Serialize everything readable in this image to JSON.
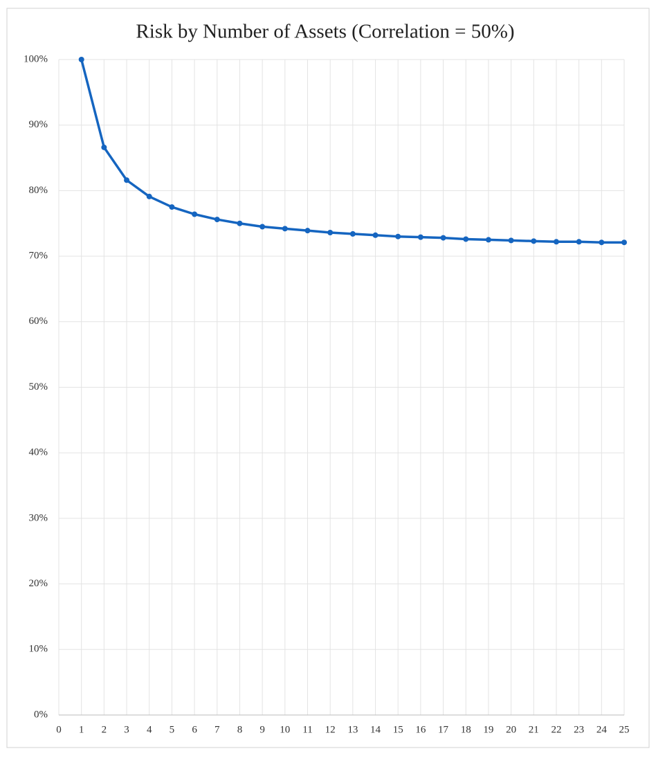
{
  "chart_data": {
    "type": "line",
    "title": "Risk by Number of Assets (Correlation = 50%)",
    "x": [
      1,
      2,
      3,
      4,
      5,
      6,
      7,
      8,
      9,
      10,
      11,
      12,
      13,
      14,
      15,
      16,
      17,
      18,
      19,
      20,
      21,
      22,
      23,
      24,
      25
    ],
    "values": [
      100,
      86.6,
      81.6,
      79.1,
      77.5,
      76.4,
      75.6,
      75.0,
      74.5,
      74.2,
      73.9,
      73.6,
      73.4,
      73.2,
      73.0,
      72.9,
      72.8,
      72.6,
      72.5,
      72.4,
      72.3,
      72.2,
      72.2,
      72.1,
      72.1
    ],
    "color": "#1565c0",
    "xlim": [
      0,
      25
    ],
    "xticks": [
      0,
      1,
      2,
      3,
      4,
      5,
      6,
      7,
      8,
      9,
      10,
      11,
      12,
      13,
      14,
      15,
      16,
      17,
      18,
      19,
      20,
      21,
      22,
      23,
      24,
      25
    ],
    "ylim": [
      0,
      100
    ],
    "yticks": [
      {
        "value": 0,
        "label": "0%"
      },
      {
        "value": 10,
        "label": "10%"
      },
      {
        "value": 20,
        "label": "20%"
      },
      {
        "value": 30,
        "label": "30%"
      },
      {
        "value": 40,
        "label": "40%"
      },
      {
        "value": 50,
        "label": "50%"
      },
      {
        "value": 60,
        "label": "60%"
      },
      {
        "value": 70,
        "label": "70%"
      },
      {
        "value": 80,
        "label": "80%"
      },
      {
        "value": 90,
        "label": "90%"
      },
      {
        "value": 100,
        "label": "100%"
      }
    ],
    "grid": true
  }
}
